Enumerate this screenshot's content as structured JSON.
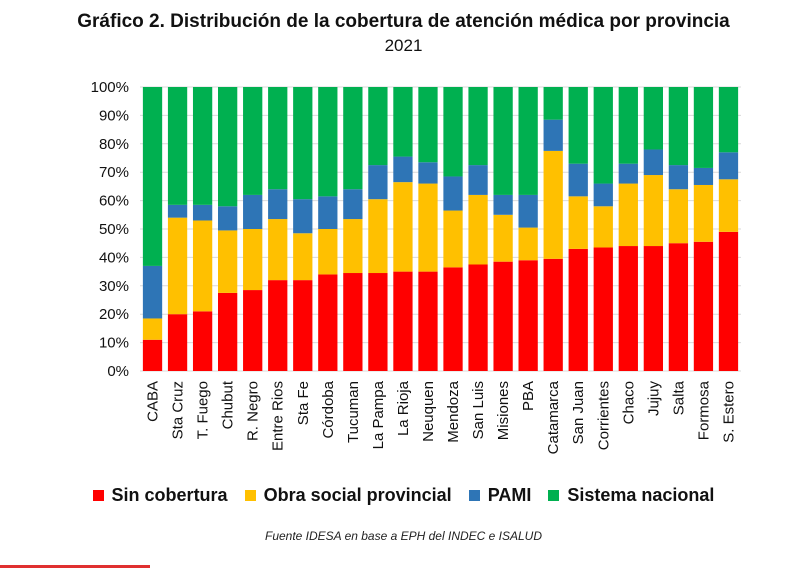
{
  "chart_data": {
    "type": "bar",
    "stacked": true,
    "title": "Gráfico 2. Distribución de la cobertura de atención médica por provincia",
    "subtitle": "2021",
    "source": "Fuente IDESA en base a EPH del INDEC e ISALUD",
    "ylim": [
      0,
      100
    ],
    "yticks": [
      "0%",
      "10%",
      "20%",
      "30%",
      "40%",
      "50%",
      "60%",
      "70%",
      "80%",
      "90%",
      "100%"
    ],
    "categories": [
      "CABA",
      "Sta Cruz",
      "T. Fuego",
      "Chubut",
      "R. Negro",
      "Entre Rios",
      "Sta Fe",
      "Córdoba",
      "Tucuman",
      "La Pampa",
      "La Rioja",
      "Neuquen",
      "Mendoza",
      "San Luis",
      "Misiones",
      "PBA",
      "Catamarca",
      "San Juan",
      "Corrientes",
      "Chaco",
      "Jujuy",
      "Salta",
      "Formosa",
      "S. Estero"
    ],
    "series": [
      {
        "name": "Sin cobertura",
        "color": "#ff0000",
        "values": [
          11,
          20,
          21,
          27.5,
          28.5,
          32,
          32,
          34,
          34.5,
          34.5,
          35,
          35,
          36.5,
          37.5,
          38.5,
          39,
          39.5,
          43,
          43.5,
          44,
          44,
          45,
          45.5,
          49
        ]
      },
      {
        "name": "Obra social provincial",
        "color": "#ffc000",
        "values": [
          7.5,
          34,
          32,
          22,
          21.5,
          21.5,
          16.5,
          16,
          19,
          26,
          31.5,
          31,
          20,
          24.5,
          16.5,
          11.5,
          38,
          18.5,
          14.5,
          22,
          25,
          19,
          20,
          18.5
        ]
      },
      {
        "name": "PAMI",
        "color": "#2e75b6",
        "values": [
          18.5,
          4.5,
          5.5,
          8.5,
          12,
          10.5,
          12,
          11.5,
          10.5,
          12,
          9,
          7.5,
          12,
          10.5,
          7,
          11.5,
          11,
          11.5,
          8,
          7,
          9,
          8.5,
          6,
          9.5
        ]
      },
      {
        "name": "Sistema nacional",
        "color": "#00b050",
        "values": [
          63,
          41.5,
          41.5,
          42,
          38,
          36,
          39.5,
          38.5,
          36,
          27.5,
          24.5,
          26.5,
          31.5,
          27.5,
          38,
          38,
          11.5,
          27,
          34,
          27,
          22,
          27.5,
          28.5,
          23
        ]
      }
    ]
  },
  "corner_color": "#e03030"
}
